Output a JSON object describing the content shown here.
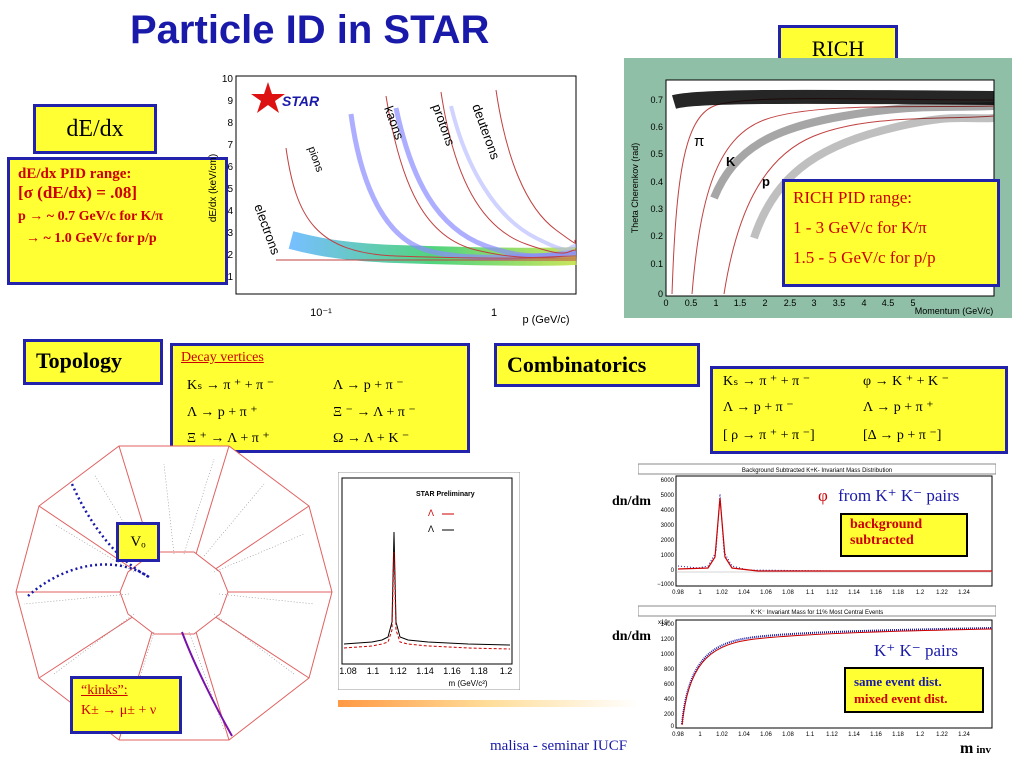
{
  "title": "Particle ID in STAR",
  "dedx": {
    "label": "dE/dx",
    "box_title": "dE/dx PID range:",
    "sigma_line": "[σ (dE/dx) = .08]",
    "line1": "p → ~ 0.7 GeV/c for K/π",
    "line2": "→ ~ 1.0 GeV/c for  p/p",
    "plot": {
      "ylabel": "dE/dx (keV/cm)",
      "xlabel": "p  (GeV/c)",
      "logo": "STAR",
      "yticks": [
        "10",
        "9",
        "8",
        "7",
        "6",
        "5",
        "4",
        "3",
        "2",
        "1"
      ],
      "xticks": [
        "10⁻¹",
        "1"
      ],
      "bands": [
        "electrons",
        "pions",
        "kaons",
        "protons",
        "deuterons"
      ]
    }
  },
  "rich": {
    "label": "RICH",
    "box_title": "RICH PID range:",
    "line1": "1 - 3 GeV/c for K/π",
    "line2": "1.5 - 5 GeV/c for   p/p",
    "plot": {
      "ylabel": "Theta Cherenkov (rad)",
      "xlabel": "Momentum (GeV/c)",
      "yticks": [
        "0.7",
        "0.6",
        "0.5",
        "0.4",
        "0.3",
        "0.2",
        "0.1",
        "0"
      ],
      "xticks": [
        "0",
        "0.5",
        "1",
        "1.5",
        "2",
        "2.5",
        "3",
        "3.5",
        "4",
        "4.5",
        "5"
      ],
      "labels": [
        "π",
        "K",
        "p"
      ]
    }
  },
  "topology": {
    "label": "Topology",
    "decay_title": "Decay vertices",
    "row1a": "Kₛ → π ⁺ + π ⁻",
    "row1b": "Λ  →  p   + π ⁻",
    "row2a": "Λ  →  p  + π ⁺",
    "row2b": "Ξ ⁻ → Λ  +  π ⁻",
    "row3a": "Ξ ⁺ → Λ  +  π ⁺",
    "row3b": "Ω  → Λ  +  K ⁻",
    "v0": "Vₒ",
    "kinks_title": "“kinks”:",
    "kinks_line": "K± → μ± + ν"
  },
  "lambda_plot": {
    "label": "STAR Preliminary",
    "legend1": "Λ",
    "legend2": "Λ",
    "xticks": [
      "1.08",
      "1.1",
      "1.12",
      "1.14",
      "1.16",
      "1.18",
      "1.2"
    ],
    "xlabel": "m  (GeV/c²)"
  },
  "combinatorics": {
    "label": "Combinatorics",
    "row1a": "Kₛ → π ⁺ + π ⁻",
    "row1b": "φ   →  K ⁺ + K ⁻",
    "row2a": "Λ  →  p  +  π ⁻",
    "row2b": "Λ →  p  +  π ⁺",
    "row3a": "[ ρ → π ⁺ + π ⁻]",
    "row3b": "[Δ  →  p  +  π ⁻]"
  },
  "phi_plot": {
    "header": "Background Subtracted K+K- Invariant Mass Distribution",
    "ylabel": "dn/dm",
    "yticks": [
      "6000",
      "5000",
      "4000",
      "3000",
      "2000",
      "1000",
      "0",
      "−1000"
    ],
    "xticks": [
      "0.98",
      "1",
      "1.02",
      "1.04",
      "1.06",
      "1.08",
      "1.1",
      "1.12",
      "1.14",
      "1.16",
      "1.18",
      "1.2",
      "1.22",
      "1.24"
    ],
    "phi_label": "φ",
    "pairs_label": "from K⁺ K⁻ pairs",
    "bg_line1": "background",
    "bg_line2": "subtracted",
    "xlabel": "m",
    "xlabel_sub": "inv"
  },
  "kk_plot": {
    "header": "K⁺K⁻ Invariant Mass for 11% Most Central Events",
    "ylabel": "dn/dm",
    "scale": "x10⁷",
    "yticks": [
      "1400",
      "1200",
      "1000",
      "800",
      "600",
      "400",
      "200",
      "0"
    ],
    "xticks": [
      "0.98",
      "1",
      "1.02",
      "1.04",
      "1.06",
      "1.08",
      "1.1",
      "1.12",
      "1.14",
      "1.16",
      "1.18",
      "1.2",
      "1.22",
      "1.24"
    ],
    "pairs_label": "K⁺ K⁻ pairs",
    "legend1": "same event dist.",
    "legend2": "mixed event dist.",
    "xlabel": "m",
    "xlabel_sub": "inv"
  },
  "footer": "malisa - seminar IUCF",
  "colors": {
    "title": "#1a1aaa",
    "box_fill": "#ffff33",
    "box_border": "#2222aa",
    "red_text": "#cc0000",
    "rich_bg": "#8fbfa6"
  }
}
